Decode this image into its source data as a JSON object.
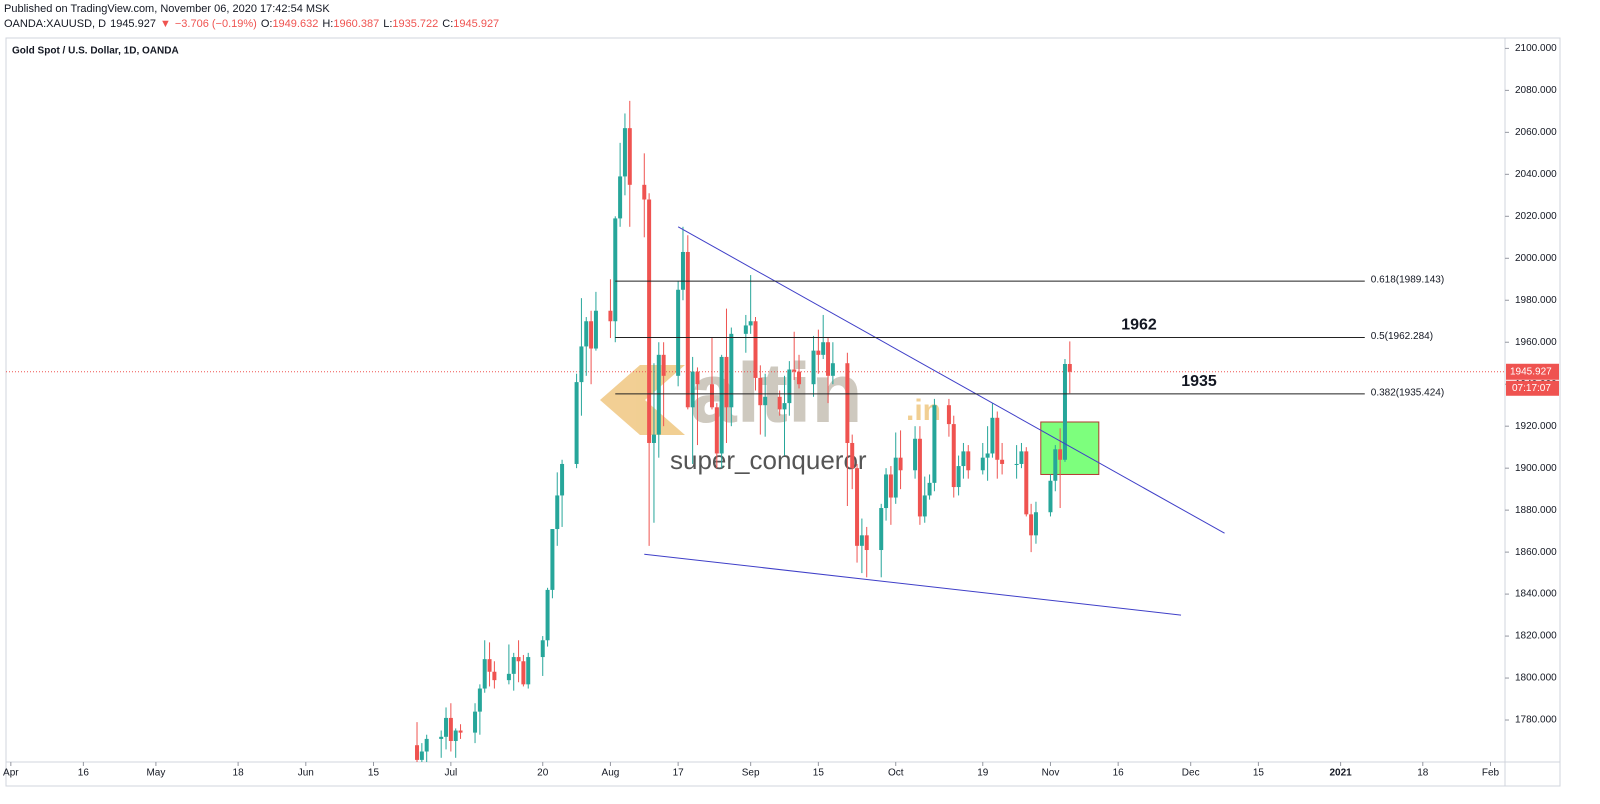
{
  "header": {
    "published": "Published on TradingView.com, November 06, 2020 17:42:54 MSK",
    "symbol": "OANDA:XAUUSD, D",
    "last": "1945.927",
    "arrow": "▼",
    "change": "−3.706 (−0.19%)",
    "ohlc": [
      {
        "label": "O:",
        "value": "1949.632"
      },
      {
        "label": "H:",
        "value": "1960.387"
      },
      {
        "label": "L:",
        "value": "1935.722"
      },
      {
        "label": "C:",
        "value": "1945.927"
      }
    ]
  },
  "chart_data": {
    "type": "candlestick",
    "title": "Gold Spot / U.S. Dollar, 1D, OANDA",
    "x": [
      "2020-06-24",
      "2020-06-25",
      "2020-06-26",
      "2020-06-29",
      "2020-06-30",
      "2020-07-01",
      "2020-07-02",
      "2020-07-03",
      "2020-07-06",
      "2020-07-07",
      "2020-07-08",
      "2020-07-09",
      "2020-07-10",
      "2020-07-13",
      "2020-07-14",
      "2020-07-15",
      "2020-07-16",
      "2020-07-17",
      "2020-07-20",
      "2020-07-21",
      "2020-07-22",
      "2020-07-23",
      "2020-07-24",
      "2020-07-27",
      "2020-07-28",
      "2020-07-29",
      "2020-07-30",
      "2020-07-31",
      "2020-08-03",
      "2020-08-04",
      "2020-08-05",
      "2020-08-06",
      "2020-08-07",
      "2020-08-10",
      "2020-08-11",
      "2020-08-12",
      "2020-08-13",
      "2020-08-14",
      "2020-08-17",
      "2020-08-18",
      "2020-08-19",
      "2020-08-20",
      "2020-08-21",
      "2020-08-24",
      "2020-08-25",
      "2020-08-26",
      "2020-08-27",
      "2020-08-28",
      "2020-08-31",
      "2020-09-01",
      "2020-09-02",
      "2020-09-03",
      "2020-09-04",
      "2020-09-07",
      "2020-09-08",
      "2020-09-09",
      "2020-09-10",
      "2020-09-11",
      "2020-09-14",
      "2020-09-15",
      "2020-09-16",
      "2020-09-17",
      "2020-09-18",
      "2020-09-21",
      "2020-09-22",
      "2020-09-23",
      "2020-09-24",
      "2020-09-25",
      "2020-09-28",
      "2020-09-29",
      "2020-09-30",
      "2020-10-01",
      "2020-10-02",
      "2020-10-05",
      "2020-10-06",
      "2020-10-07",
      "2020-10-08",
      "2020-10-09",
      "2020-10-12",
      "2020-10-13",
      "2020-10-14",
      "2020-10-15",
      "2020-10-16",
      "2020-10-19",
      "2020-10-20",
      "2020-10-21",
      "2020-10-22",
      "2020-10-23",
      "2020-10-26",
      "2020-10-27",
      "2020-10-28",
      "2020-10-29",
      "2020-10-30",
      "2020-11-02",
      "2020-11-03",
      "2020-11-04",
      "2020-11-05",
      "2020-11-06"
    ],
    "open": [
      1768,
      1761,
      1765,
      1771,
      1772,
      1781,
      1770,
      1775,
      1774,
      1784,
      1795,
      1809,
      1803,
      1799,
      1802,
      1810,
      1808,
      1797,
      1810,
      1818,
      1842,
      1871,
      1887,
      1902,
      1941,
      1958,
      1970,
      1957,
      1975,
      1970,
      2019,
      2039,
      2062,
      2035,
      2028,
      1912,
      1916,
      1954,
      1944,
      1985,
      2003,
      1929,
      1946,
      1940,
      1929,
      1907,
      1953,
      1929,
      1964,
      1968,
      1970,
      1943,
      1930,
      1934,
      1928,
      1931,
      1947,
      1946,
      1940,
      1956,
      1954,
      1960,
      1944,
      1950,
      1912,
      1900,
      1863,
      1868,
      1861,
      1881,
      1897,
      1886,
      1905,
      1899,
      1914,
      1877,
      1887,
      1893,
      1930,
      1921,
      1891,
      1901,
      1908,
      1899,
      1905,
      1907,
      1924,
      1904,
      1902,
      1902,
      1908,
      1878,
      1868,
      1879,
      1894,
      1909,
      1904,
      1949.632
    ],
    "high": [
      1779,
      1769,
      1773,
      1775,
      1786,
      1788,
      1776,
      1778,
      1788,
      1797,
      1818,
      1817,
      1808,
      1816,
      1812,
      1818,
      1811,
      1812,
      1820,
      1843,
      1871,
      1898,
      1904,
      1945,
      1981,
      1972,
      1975,
      1984,
      1990,
      2020,
      2055,
      2069,
      2075,
      2050,
      2031,
      1950,
      1960,
      1960,
      1989,
      2015,
      2011,
      1953,
      1948,
      1962,
      1931,
      1954,
      1976,
      1967,
      1973,
      1992,
      1972,
      1949,
      1945,
      1937,
      1944,
      1951,
      1965,
      1954,
      1963,
      1966,
      1973,
      1962,
      1960,
      1955,
      1916,
      1902,
      1876,
      1872,
      1883,
      1900,
      1901,
      1917,
      1918,
      1920,
      1920,
      1896,
      1897,
      1933,
      1933,
      1925,
      1906,
      1912,
      1911,
      1912,
      1920,
      1931,
      1927,
      1912,
      1911,
      1912,
      1910,
      1883,
      1884,
      1897,
      1911,
      1919,
      1952,
      1960.387
    ],
    "low": [
      1757,
      1752,
      1759,
      1762,
      1766,
      1765,
      1762,
      1771,
      1769,
      1773,
      1793,
      1796,
      1795,
      1797,
      1794,
      1798,
      1796,
      1795,
      1801,
      1815,
      1838,
      1863,
      1872,
      1900,
      1925,
      1944,
      1940,
      1956,
      1962,
      1960,
      2015,
      2030,
      2015,
      2010,
      1863,
      1874,
      1905,
      1920,
      1939,
      1980,
      1928,
      1902,
      1911,
      1928,
      1900,
      1900,
      1912,
      1920,
      1955,
      1964,
      1937,
      1916,
      1915,
      1925,
      1906,
      1925,
      1942,
      1938,
      1934,
      1945,
      1952,
      1931,
      1940,
      1882,
      1890,
      1855,
      1850,
      1848,
      1848,
      1875,
      1873,
      1883,
      1890,
      1895,
      1873,
      1874,
      1885,
      1889,
      1915,
      1886,
      1887,
      1895,
      1895,
      1897,
      1894,
      1905,
      1895,
      1897,
      1895,
      1900,
      1877,
      1860,
      1864,
      1877,
      1889,
      1881,
      1903,
      1935.722
    ],
    "close": [
      1761,
      1765,
      1771,
      1772,
      1781,
      1770,
      1775,
      1774,
      1784,
      1795,
      1809,
      1803,
      1799,
      1802,
      1810,
      1808,
      1797,
      1810,
      1818,
      1842,
      1871,
      1887,
      1902,
      1941,
      1958,
      1970,
      1957,
      1975,
      1970,
      2019,
      2039,
      2062,
      2035,
      2028,
      1912,
      1916,
      1954,
      1944,
      1985,
      2003,
      1929,
      1946,
      1940,
      1929,
      1907,
      1953,
      1929,
      1964,
      1968,
      1970,
      1943,
      1930,
      1934,
      1928,
      1931,
      1947,
      1946,
      1940,
      1956,
      1954,
      1960,
      1944,
      1950,
      1912,
      1900,
      1863,
      1868,
      1861,
      1881,
      1897,
      1886,
      1905,
      1899,
      1914,
      1877,
      1887,
      1893,
      1930,
      1921,
      1891,
      1901,
      1908,
      1899,
      1905,
      1907,
      1924,
      1904,
      1902,
      1902,
      1908,
      1878,
      1868,
      1879,
      1894,
      1909,
      1904,
      1949.632,
      1945.927
    ],
    "up_color": "#26a69a",
    "down_color": "#ef5350",
    "xlim": [
      "2020-03-31",
      "2021-02-04"
    ],
    "xticks": [
      {
        "value": "2020-04-01",
        "label": "Apr"
      },
      {
        "value": "2020-04-16",
        "label": "16"
      },
      {
        "value": "2020-05-01",
        "label": "May"
      },
      {
        "value": "2020-05-18",
        "label": "18"
      },
      {
        "value": "2020-06-01",
        "label": "Jun"
      },
      {
        "value": "2020-06-15",
        "label": "15"
      },
      {
        "value": "2020-07-01",
        "label": "Jul"
      },
      {
        "value": "2020-07-20",
        "label": "20"
      },
      {
        "value": "2020-08-03",
        "label": "Aug"
      },
      {
        "value": "2020-08-17",
        "label": "17"
      },
      {
        "value": "2020-09-01",
        "label": "Sep"
      },
      {
        "value": "2020-09-15",
        "label": "15"
      },
      {
        "value": "2020-10-01",
        "label": "Oct"
      },
      {
        "value": "2020-10-19",
        "label": "19"
      },
      {
        "value": "2020-11-02",
        "label": "Nov"
      },
      {
        "value": "2020-11-16",
        "label": "16"
      },
      {
        "value": "2020-12-01",
        "label": "Dec"
      },
      {
        "value": "2020-12-15",
        "label": "15"
      },
      {
        "value": "2021-01-01",
        "label": "2021"
      },
      {
        "value": "2021-01-18",
        "label": "18"
      },
      {
        "value": "2021-02-01",
        "label": "Feb"
      }
    ],
    "ylim": [
      1760,
      2104
    ],
    "yticks": [
      {
        "value": 1780,
        "label": "1780.000"
      },
      {
        "value": 1800,
        "label": "1800.000"
      },
      {
        "value": 1820,
        "label": "1820.000"
      },
      {
        "value": 1840,
        "label": "1840.000"
      },
      {
        "value": 1860,
        "label": "1860.000"
      },
      {
        "value": 1880,
        "label": "1880.000"
      },
      {
        "value": 1900,
        "label": "1900.000"
      },
      {
        "value": 1920,
        "label": "1920.000"
      },
      {
        "value": 1940,
        "label": "1940.000"
      },
      {
        "value": 1960,
        "label": "1960.000"
      },
      {
        "value": 1980,
        "label": "1980.000"
      },
      {
        "value": 2000,
        "label": "2000.000"
      },
      {
        "value": 2020,
        "label": "2020.000"
      },
      {
        "value": 2040,
        "label": "2040.000"
      },
      {
        "value": 2060,
        "label": "2060.000"
      },
      {
        "value": 2080,
        "label": "2080.000"
      },
      {
        "value": 2100,
        "label": "2100.000"
      }
    ],
    "grid": false,
    "last_price": {
      "value": 1945.927,
      "label": "1945.927",
      "color": "#ef5350"
    },
    "countdown": "07:17:07",
    "fib_levels": [
      {
        "value": 1989.143,
        "label": "0.618(1989.143)",
        "start": "2020-08-04",
        "end": "2021-01-06"
      },
      {
        "value": 1962.284,
        "label": "0.5(1962.284)",
        "note": "1962",
        "start": "2020-08-04",
        "end": "2021-01-06"
      },
      {
        "value": 1935.424,
        "label": "0.382(1935.424)",
        "note": "1935",
        "start": "2020-08-04",
        "end": "2021-01-06"
      }
    ],
    "trendlines": [
      {
        "start": {
          "x": "2020-08-17",
          "y": 2015
        },
        "end": {
          "x": "2020-12-08",
          "y": 1869
        },
        "color": "#3f3fc8"
      },
      {
        "start": {
          "x": "2020-08-10",
          "y": 1859
        },
        "end": {
          "x": "2020-11-29",
          "y": 1830
        },
        "color": "#3f3fc8"
      }
    ],
    "highlight_box": {
      "x": [
        "2020-10-31",
        "2020-11-12"
      ],
      "y": [
        1897,
        1922
      ],
      "color": "#7dff7d"
    },
    "watermark": {
      "logo": "altin",
      "logo_suffix": ".in",
      "user": "super_conqueror"
    }
  }
}
